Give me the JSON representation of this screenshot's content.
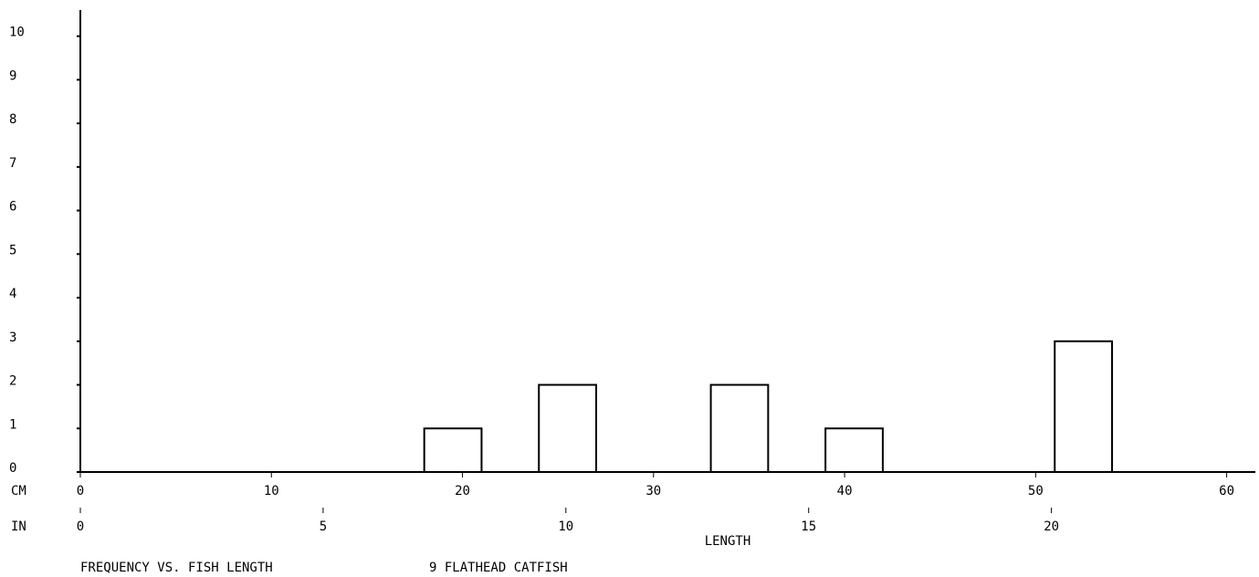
{
  "chart_data": {
    "type": "histogram",
    "title": "FREQUENCY VS. FISH LENGTH",
    "subtitle": "9 FLATHEAD CATFISH",
    "xlabel": "LENGTH",
    "x_unit_label": "CM",
    "x2_unit_label": "IN",
    "bins": [
      0,
      3,
      6,
      9,
      12,
      15,
      18,
      21,
      24,
      27,
      30,
      33,
      36,
      39,
      42,
      45,
      48,
      51,
      54,
      57,
      60
    ],
    "counts": [
      0,
      0,
      0,
      0,
      0,
      0,
      1,
      0,
      2,
      0,
      0,
      2,
      0,
      1,
      0,
      0,
      0,
      3,
      0,
      0
    ],
    "color": "#000000",
    "fill": "#ffffff",
    "xlim": [
      0,
      61.5
    ],
    "xticks": [
      0,
      10,
      20,
      30,
      40,
      50,
      60
    ],
    "x2lim": [
      0,
      24.2
    ],
    "x2ticks": [
      0,
      5,
      10,
      15,
      20
    ],
    "ylim": [
      0,
      10.6
    ],
    "yticks": [
      0,
      1,
      2,
      3,
      4,
      5,
      6,
      7,
      8,
      9,
      10
    ]
  }
}
